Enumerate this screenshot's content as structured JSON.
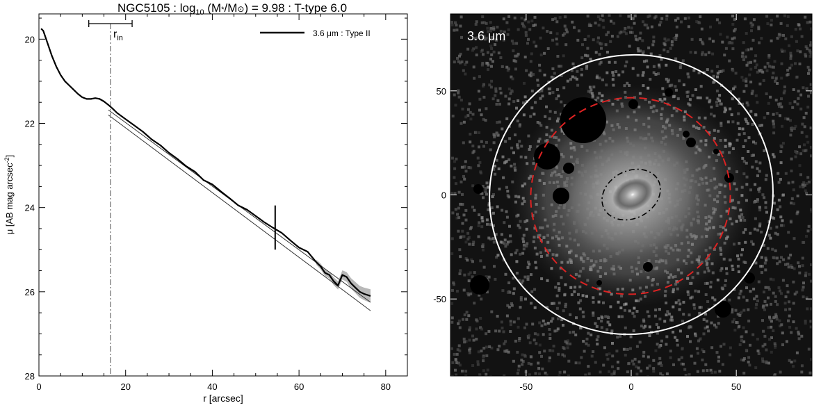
{
  "figure": {
    "title_main": "NGC5105 : log",
    "title_sub": "10",
    "title_mid": " (M",
    "title_star": "*",
    "title_slash": "/M",
    "title_sun": "⊙",
    "title_tail": ") = 9.98 : T-type 6.0",
    "left_ylabel_main": "μ [AB mag arcsec",
    "left_ylabel_sup": "-2",
    "left_ylabel_close": "]",
    "left_xlabel": "r [arcsec]",
    "legend_label": "3.6 μm : Type II",
    "rin_label_main": "r",
    "rin_label_sub": "in",
    "image_band_label": "3.6 μm"
  },
  "chart_data": [
    {
      "type": "line",
      "panel": "surface-brightness-profile",
      "xlim": [
        0,
        85
      ],
      "ylim": [
        28,
        19.4
      ],
      "y_inverted": true,
      "xticks": [
        0,
        20,
        40,
        60,
        80
      ],
      "xtick_labels": [
        "0",
        "20",
        "40",
        "60",
        "80"
      ],
      "yticks": [
        20,
        22,
        24,
        26,
        28
      ],
      "ytick_labels": [
        "20",
        "22",
        "24",
        "26",
        "28"
      ],
      "grid": false,
      "legend_position": "top-right",
      "series": [
        {
          "name": "3.6 μm : Type II",
          "x": [
            0.5,
            1,
            2,
            3,
            4,
            5,
            6,
            7,
            8,
            9,
            10,
            11,
            12,
            13,
            14,
            15,
            16,
            17,
            18,
            20,
            22,
            24,
            26,
            28,
            30,
            32,
            34,
            36,
            38,
            40,
            42,
            44,
            46,
            48,
            50,
            52,
            54,
            56,
            58,
            60,
            62,
            64,
            65,
            66,
            67,
            68,
            69,
            70,
            71,
            72,
            73,
            74,
            75,
            76.5
          ],
          "y": [
            19.75,
            19.8,
            20.1,
            20.4,
            20.65,
            20.85,
            21.0,
            21.1,
            21.2,
            21.3,
            21.38,
            21.42,
            21.42,
            21.4,
            21.42,
            21.48,
            21.56,
            21.65,
            21.75,
            21.9,
            22.05,
            22.2,
            22.38,
            22.52,
            22.7,
            22.85,
            23.02,
            23.15,
            23.35,
            23.45,
            23.62,
            23.78,
            23.95,
            24.05,
            24.2,
            24.35,
            24.48,
            24.6,
            24.78,
            24.95,
            25.05,
            25.3,
            25.4,
            25.55,
            25.6,
            25.75,
            25.85,
            25.6,
            25.65,
            25.8,
            25.9,
            26.0,
            26.05,
            26.1
          ]
        }
      ],
      "fits": [
        {
          "x": [
            16,
            76.5
          ],
          "y": [
            21.68,
            26.25
          ]
        },
        {
          "x": [
            16,
            76.5
          ],
          "y": [
            21.8,
            26.45
          ]
        }
      ],
      "error_band_x_range": [
        64,
        77
      ],
      "break_radius": 54.5,
      "r_in": 16.5,
      "r_in_range": [
        11.5,
        21.5
      ]
    },
    {
      "type": "image",
      "panel": "3.6um-image",
      "xlim": [
        -86,
        86
      ],
      "ylim": [
        -87,
        87
      ],
      "xticks": [
        -50,
        0,
        50
      ],
      "xtick_labels": [
        "-50",
        "0",
        "50"
      ],
      "yticks": [
        -50,
        0,
        50
      ],
      "ytick_labels": [
        "-50",
        "0",
        "50"
      ],
      "ellipses": [
        {
          "name": "outer",
          "color": "#ffffff",
          "style": "solid",
          "cx": 0,
          "cy": 0,
          "rx": 68,
          "ry": 68,
          "rotation_deg": 25
        },
        {
          "name": "break",
          "color": "#dd2222",
          "style": "dashed",
          "cx": 0,
          "cy": 0,
          "rx": 48,
          "ry": 48,
          "rotation_deg": 20
        },
        {
          "name": "inner",
          "color": "#000000",
          "style": "dash-dot",
          "cx": 0,
          "cy": 0,
          "rx": 14,
          "ry": 11,
          "rotation_deg": 25
        }
      ]
    }
  ],
  "colors": {
    "profile_line": "#000000",
    "fit_line": "#333333",
    "error_band": "#b8b8b8",
    "rin_marker": "#888888",
    "image_background": "#121212",
    "outer_ellipse": "#ffffff",
    "break_ellipse": "#dd2222",
    "inner_ellipse": "#000000"
  }
}
